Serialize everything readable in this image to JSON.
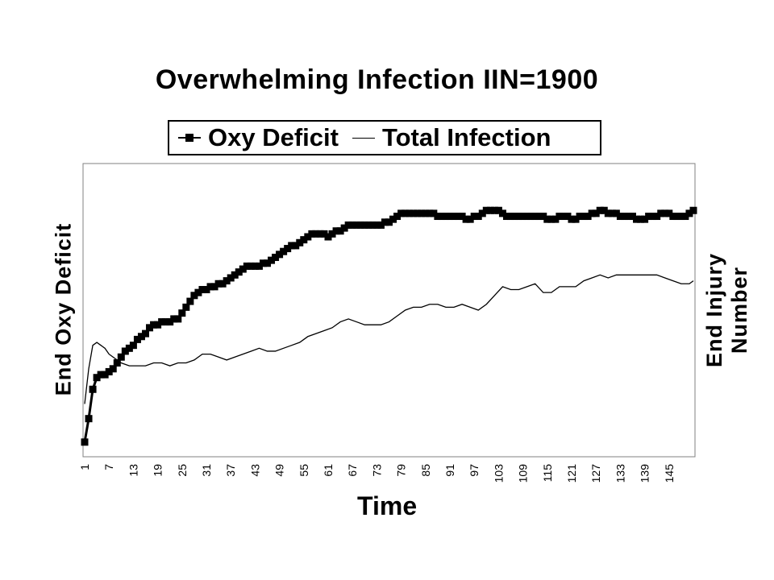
{
  "chart_data": {
    "type": "line",
    "title": "Overwhelming Infection IIN=1900",
    "xlabel": "Time",
    "ylabel_left": "End Oxy Deficit",
    "ylabel_right": [
      "End Injury",
      "Number"
    ],
    "x_range": [
      1,
      151
    ],
    "x_tick_labels": [
      "1",
      "7",
      "13",
      "19",
      "25",
      "31",
      "37",
      "43",
      "49",
      "55",
      "61",
      "67",
      "73",
      "79",
      "85",
      "91",
      "97",
      "103",
      "109",
      "115",
      "121",
      "127",
      "133",
      "139",
      "145"
    ],
    "y_tick_labels": [],
    "grid": false,
    "legend": "top",
    "series": [
      {
        "name": "Oxy Deficit",
        "marker": "square",
        "x": [
          1,
          2,
          3,
          4,
          5,
          6,
          7,
          8,
          9,
          10,
          11,
          12,
          13,
          14,
          15,
          16,
          17,
          18,
          19,
          20,
          21,
          22,
          23,
          24,
          25,
          26,
          27,
          28,
          29,
          30,
          31,
          32,
          33,
          34,
          35,
          36,
          37,
          38,
          39,
          40,
          41,
          42,
          43,
          44,
          45,
          46,
          47,
          48,
          49,
          50,
          51,
          52,
          53,
          54,
          55,
          56,
          57,
          58,
          59,
          60,
          61,
          62,
          63,
          64,
          65,
          66,
          67,
          68,
          69,
          70,
          71,
          72,
          73,
          74,
          75,
          76,
          77,
          78,
          79,
          80,
          81,
          82,
          83,
          84,
          85,
          86,
          87,
          88,
          89,
          90,
          91,
          92,
          93,
          94,
          95,
          96,
          97,
          98,
          99,
          100,
          101,
          102,
          103,
          104,
          105,
          106,
          107,
          108,
          109,
          110,
          111,
          112,
          113,
          114,
          115,
          116,
          117,
          118,
          119,
          120,
          121,
          122,
          123,
          124,
          125,
          126,
          127,
          128,
          129,
          130,
          131,
          132,
          133,
          134,
          135,
          136,
          137,
          138,
          139,
          140,
          141,
          142,
          143,
          144,
          145,
          146,
          147,
          148,
          149,
          150,
          151
        ],
        "values": [
          0.05,
          0.13,
          0.23,
          0.27,
          0.28,
          0.28,
          0.29,
          0.3,
          0.32,
          0.34,
          0.36,
          0.37,
          0.38,
          0.4,
          0.41,
          0.42,
          0.44,
          0.45,
          0.45,
          0.46,
          0.46,
          0.46,
          0.47,
          0.47,
          0.49,
          0.51,
          0.53,
          0.55,
          0.56,
          0.57,
          0.57,
          0.58,
          0.58,
          0.59,
          0.59,
          0.6,
          0.61,
          0.62,
          0.63,
          0.64,
          0.65,
          0.65,
          0.65,
          0.65,
          0.66,
          0.66,
          0.67,
          0.68,
          0.69,
          0.7,
          0.71,
          0.72,
          0.72,
          0.73,
          0.74,
          0.75,
          0.76,
          0.76,
          0.76,
          0.76,
          0.75,
          0.76,
          0.77,
          0.77,
          0.78,
          0.79,
          0.79,
          0.79,
          0.79,
          0.79,
          0.79,
          0.79,
          0.79,
          0.79,
          0.8,
          0.8,
          0.81,
          0.82,
          0.83,
          0.83,
          0.83,
          0.83,
          0.83,
          0.83,
          0.83,
          0.83,
          0.83,
          0.82,
          0.82,
          0.82,
          0.82,
          0.82,
          0.82,
          0.82,
          0.81,
          0.81,
          0.82,
          0.82,
          0.83,
          0.84,
          0.84,
          0.84,
          0.84,
          0.83,
          0.82,
          0.82,
          0.82,
          0.82,
          0.82,
          0.82,
          0.82,
          0.82,
          0.82,
          0.82,
          0.81,
          0.81,
          0.81,
          0.82,
          0.82,
          0.82,
          0.81,
          0.81,
          0.82,
          0.82,
          0.82,
          0.83,
          0.83,
          0.84,
          0.84,
          0.83,
          0.83,
          0.83,
          0.82,
          0.82,
          0.82,
          0.82,
          0.81,
          0.81,
          0.81,
          0.82,
          0.82,
          0.82,
          0.83,
          0.83,
          0.83,
          0.82,
          0.82,
          0.82,
          0.82,
          0.83,
          0.84
        ]
      },
      {
        "name": "Total Infection",
        "marker": "none",
        "x": [
          1,
          2,
          3,
          4,
          5,
          6,
          7,
          8,
          10,
          12,
          14,
          16,
          18,
          20,
          22,
          24,
          26,
          28,
          30,
          32,
          34,
          36,
          38,
          40,
          42,
          44,
          46,
          48,
          50,
          52,
          54,
          56,
          58,
          60,
          62,
          64,
          66,
          68,
          70,
          72,
          74,
          76,
          78,
          80,
          82,
          84,
          86,
          88,
          90,
          92,
          94,
          96,
          98,
          100,
          102,
          104,
          106,
          108,
          110,
          112,
          114,
          116,
          118,
          120,
          122,
          124,
          126,
          128,
          130,
          132,
          134,
          136,
          138,
          140,
          142,
          144,
          146,
          148,
          150,
          151
        ],
        "values": [
          0.18,
          0.3,
          0.38,
          0.39,
          0.38,
          0.37,
          0.35,
          0.34,
          0.32,
          0.31,
          0.31,
          0.31,
          0.32,
          0.32,
          0.31,
          0.32,
          0.32,
          0.33,
          0.35,
          0.35,
          0.34,
          0.33,
          0.34,
          0.35,
          0.36,
          0.37,
          0.36,
          0.36,
          0.37,
          0.38,
          0.39,
          0.41,
          0.42,
          0.43,
          0.44,
          0.46,
          0.47,
          0.46,
          0.45,
          0.45,
          0.45,
          0.46,
          0.48,
          0.5,
          0.51,
          0.51,
          0.52,
          0.52,
          0.51,
          0.51,
          0.52,
          0.51,
          0.5,
          0.52,
          0.55,
          0.58,
          0.57,
          0.57,
          0.58,
          0.59,
          0.56,
          0.56,
          0.58,
          0.58,
          0.58,
          0.6,
          0.61,
          0.62,
          0.61,
          0.62,
          0.62,
          0.62,
          0.62,
          0.62,
          0.62,
          0.61,
          0.6,
          0.59,
          0.59,
          0.6
        ]
      }
    ]
  }
}
